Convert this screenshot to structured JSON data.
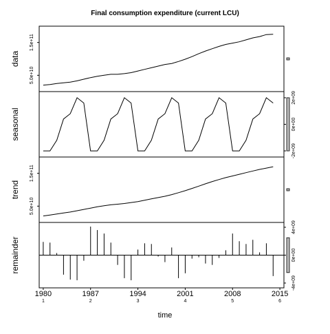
{
  "chart_data": {
    "type": "line",
    "title": "Final consumption expenditure (current LCU)",
    "xlabel": "time",
    "x_ticks": [
      "1980",
      "1987",
      "1994",
      "2001",
      "2008",
      "2015"
    ],
    "x_tick_values": [
      1980,
      1987,
      1994,
      2001,
      2008,
      2015
    ],
    "cycle_labels": [
      "1",
      "2",
      "3",
      "4",
      "5",
      "6"
    ],
    "cycle_positions": [
      1980,
      1987,
      1994,
      2001,
      2008,
      2015
    ],
    "xlim": [
      1979.4,
      2015.6
    ],
    "panels": [
      {
        "name": "data",
        "ylabel": "data",
        "ylim": [
          15000000000.0,
          185000000000.0
        ],
        "y_ticks": [
          50000000000.0,
          150000000000.0
        ],
        "y_tick_labels": [
          "5.0e+10",
          "1.5e+11"
        ],
        "x": [
          1980,
          1981,
          1982,
          1983,
          1984,
          1985,
          1986,
          1987,
          1988,
          1989,
          1990,
          1991,
          1992,
          1993,
          1994,
          1995,
          1996,
          1997,
          1998,
          1999,
          2000,
          2001,
          2002,
          2003,
          2004,
          2005,
          2006,
          2007,
          2008,
          2009,
          2010,
          2011,
          2012,
          2013,
          2014
        ],
        "values": [
          20000000000.0,
          22000000000.0,
          25000000000.0,
          27000000000.0,
          29000000000.0,
          33000000000.0,
          38000000000.0,
          43000000000.0,
          47000000000.0,
          50000000000.0,
          53000000000.0,
          53000000000.0,
          55000000000.0,
          58000000000.0,
          63000000000.0,
          68000000000.0,
          73000000000.0,
          78000000000.0,
          83000000000.0,
          86000000000.0,
          92000000000.0,
          99000000000.0,
          107000000000.0,
          116000000000.0,
          124000000000.0,
          131000000000.0,
          138000000000.0,
          144000000000.0,
          148000000000.0,
          152000000000.0,
          158000000000.0,
          164000000000.0,
          168000000000.0,
          174000000000.0,
          175000000000.0
        ]
      },
      {
        "name": "seasonal",
        "ylabel": "seasonal",
        "ylim": [
          -2100000000.0,
          2100000000.0
        ],
        "y_ticks": [
          -2000000000.0,
          0,
          2000000000.0
        ],
        "y_tick_labels": [
          "-2e+09",
          "0e+00",
          "2e+09"
        ],
        "x": [
          1980,
          1981,
          1982,
          1983,
          1984,
          1985,
          1986,
          1987,
          1988,
          1989,
          1990,
          1991,
          1992,
          1993,
          1994,
          1995,
          1996,
          1997,
          1998,
          1999,
          2000,
          2001,
          2002,
          2003,
          2004,
          2005,
          2006,
          2007,
          2008,
          2009,
          2010,
          2011,
          2012,
          2013,
          2014
        ],
        "values": [
          -2000000000.0,
          -2000000000.0,
          -1200000000.0,
          400000000.0,
          800000000.0,
          2000000000.0,
          1600000000.0,
          -2000000000.0,
          -2000000000.0,
          -1200000000.0,
          400000000.0,
          800000000.0,
          2000000000.0,
          1600000000.0,
          -2000000000.0,
          -2000000000.0,
          -1200000000.0,
          400000000.0,
          800000000.0,
          2000000000.0,
          1600000000.0,
          -2000000000.0,
          -2000000000.0,
          -1200000000.0,
          400000000.0,
          800000000.0,
          2000000000.0,
          1600000000.0,
          -2000000000.0,
          -2000000000.0,
          -1200000000.0,
          400000000.0,
          800000000.0,
          2000000000.0,
          1600000000.0
        ]
      },
      {
        "name": "trend",
        "ylabel": "trend",
        "ylim": [
          15000000000.0,
          185000000000.0
        ],
        "y_ticks": [
          50000000000.0,
          150000000000.0
        ],
        "y_tick_labels": [
          "5.0e+10",
          "1.5e+11"
        ],
        "x": [
          1980,
          1981,
          1982,
          1983,
          1984,
          1985,
          1986,
          1987,
          1988,
          1989,
          1990,
          1991,
          1992,
          1993,
          1994,
          1995,
          1996,
          1997,
          1998,
          1999,
          2000,
          2001,
          2002,
          2003,
          2004,
          2005,
          2006,
          2007,
          2008,
          2009,
          2010,
          2011,
          2012,
          2013,
          2014
        ],
        "values": [
          20000000000.0,
          23000000000.0,
          26000000000.0,
          29000000000.0,
          32000000000.0,
          36000000000.0,
          40000000000.0,
          44000000000.0,
          48000000000.0,
          51000000000.0,
          54000000000.0,
          56000000000.0,
          58000000000.0,
          61000000000.0,
          64000000000.0,
          68000000000.0,
          72000000000.0,
          76000000000.0,
          80000000000.0,
          85000000000.0,
          91000000000.0,
          97000000000.0,
          104000000000.0,
          111000000000.0,
          118000000000.0,
          125000000000.0,
          131000000000.0,
          137000000000.0,
          142000000000.0,
          147000000000.0,
          152000000000.0,
          157000000000.0,
          162000000000.0,
          166000000000.0,
          170000000000.0
        ]
      },
      {
        "name": "remainder",
        "ylabel": "remainder",
        "ylim": [
          -4000000000.0,
          4000000000.0
        ],
        "y_ticks": [
          -4000000000.0,
          0,
          4000000000.0
        ],
        "y_tick_labels": [
          "-4e+09",
          "0e+00",
          "4e+09"
        ],
        "x": [
          1980,
          1981,
          1982,
          1983,
          1984,
          1985,
          1986,
          1987,
          1988,
          1989,
          1990,
          1991,
          1992,
          1993,
          1994,
          1995,
          1996,
          1997,
          1998,
          1999,
          2000,
          2001,
          2002,
          2003,
          2004,
          2005,
          2006,
          2007,
          2008,
          2009,
          2010,
          2011,
          2012,
          2013,
          2014
        ],
        "values": [
          1900000000.0,
          1800000000.0,
          300000000.0,
          -2800000000.0,
          -3500000000.0,
          -3600000000.0,
          -800000000.0,
          4100000000.0,
          3600000000.0,
          3100000000.0,
          1800000000.0,
          -1400000000.0,
          -3300000000.0,
          -3600000000.0,
          800000000.0,
          1700000000.0,
          1600000000.0,
          -200000000.0,
          -1000000000.0,
          1100000000.0,
          -3300000000.0,
          -2600000000.0,
          -500000000.0,
          -300000000.0,
          -1200000000.0,
          -1400000000.0,
          -400000000.0,
          700000000.0,
          3100000000.0,
          2000000000.0,
          1600000000.0,
          2200000000.0,
          400000000.0,
          1700000000.0,
          -3000000000.0
        ]
      }
    ],
    "side_range_bars": true
  }
}
